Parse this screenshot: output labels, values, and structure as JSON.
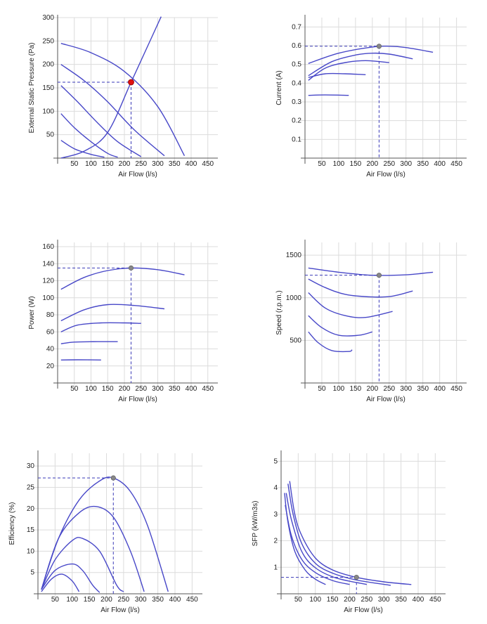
{
  "colors": {
    "curve": "#4848c8",
    "guide": "#3a3ab8",
    "grid": "#dcdcdc",
    "point_red": "#e01010",
    "point_grey": "#888888"
  },
  "chart_data": [
    {
      "type": "line",
      "xlabel": "Air Flow (l/s)",
      "ylabel": "External Static Pressure (Pa)",
      "xlim": [
        0,
        480
      ],
      "ylim": [
        0,
        300
      ],
      "xticks": [
        50,
        100,
        150,
        200,
        250,
        300,
        350,
        400,
        450
      ],
      "yticks": [
        50,
        100,
        150,
        200,
        250,
        300
      ],
      "grid": true,
      "series": [
        {
          "points": [
            [
              10,
              245
            ],
            [
              100,
              225
            ],
            [
              200,
              185
            ],
            [
              300,
              110
            ],
            [
              380,
              5
            ]
          ]
        },
        {
          "points": [
            [
              10,
              200
            ],
            [
              80,
              165
            ],
            [
              150,
              120
            ],
            [
              230,
              60
            ],
            [
              320,
              5
            ]
          ]
        },
        {
          "points": [
            [
              10,
              155
            ],
            [
              60,
              120
            ],
            [
              120,
              75
            ],
            [
              180,
              35
            ],
            [
              250,
              3
            ]
          ]
        },
        {
          "points": [
            [
              10,
              95
            ],
            [
              50,
              65
            ],
            [
              100,
              35
            ],
            [
              150,
              10
            ],
            [
              180,
              2
            ]
          ]
        },
        {
          "points": [
            [
              10,
              38
            ],
            [
              50,
              20
            ],
            [
              100,
              8
            ],
            [
              140,
              2
            ]
          ]
        },
        {
          "points": [
            [
              10,
              0
            ],
            [
              80,
              15
            ],
            [
              150,
              55
            ],
            [
              220,
              162
            ],
            [
              280,
              255
            ],
            [
              310,
              302
            ]
          ]
        }
      ],
      "operating_point": {
        "x": 220,
        "y": 162,
        "color": "red"
      }
    },
    {
      "type": "line",
      "xlabel": "Air Flow (l/s)",
      "ylabel": "Current (A)",
      "xlim": [
        0,
        480
      ],
      "ylim": [
        0,
        0.75
      ],
      "xticks": [
        50,
        100,
        150,
        200,
        250,
        300,
        350,
        400,
        450
      ],
      "yticks": [
        "0.1",
        "0.2",
        "0.3",
        "0.4",
        "0.5",
        "0.6",
        "0.7"
      ],
      "grid": true,
      "series": [
        {
          "points": [
            [
              10,
              0.505
            ],
            [
              100,
              0.56
            ],
            [
              200,
              0.593
            ],
            [
              250,
              0.597
            ],
            [
              300,
              0.59
            ],
            [
              380,
              0.565
            ]
          ]
        },
        {
          "points": [
            [
              10,
              0.44
            ],
            [
              80,
              0.515
            ],
            [
              150,
              0.55
            ],
            [
              200,
              0.56
            ],
            [
              250,
              0.555
            ],
            [
              320,
              0.53
            ]
          ]
        },
        {
          "points": [
            [
              10,
              0.415
            ],
            [
              60,
              0.48
            ],
            [
              120,
              0.51
            ],
            [
              180,
              0.52
            ],
            [
              250,
              0.51
            ]
          ]
        },
        {
          "points": [
            [
              10,
              0.43
            ],
            [
              60,
              0.45
            ],
            [
              120,
              0.45
            ],
            [
              180,
              0.445
            ]
          ]
        },
        {
          "points": [
            [
              10,
              0.335
            ],
            [
              60,
              0.337
            ],
            [
              130,
              0.335
            ]
          ]
        }
      ],
      "operating_point": {
        "x": 220,
        "y": 0.597,
        "color": "grey"
      }
    },
    {
      "type": "line",
      "xlabel": "Air Flow (l/s)",
      "ylabel": "Power (W)",
      "xlim": [
        0,
        480
      ],
      "ylim": [
        0,
        165
      ],
      "xticks": [
        50,
        100,
        150,
        200,
        250,
        300,
        350,
        400,
        450
      ],
      "yticks": [
        20,
        40,
        60,
        80,
        100,
        120,
        140,
        160
      ],
      "grid": true,
      "series": [
        {
          "points": [
            [
              10,
              110
            ],
            [
              80,
              124
            ],
            [
              150,
              132
            ],
            [
              220,
              135
            ],
            [
              300,
              133
            ],
            [
              380,
              127
            ]
          ]
        },
        {
          "points": [
            [
              10,
              73
            ],
            [
              80,
              86
            ],
            [
              150,
              92
            ],
            [
              230,
              91
            ],
            [
              320,
              87
            ]
          ]
        },
        {
          "points": [
            [
              10,
              60
            ],
            [
              60,
              68
            ],
            [
              130,
              70.5
            ],
            [
              200,
              70.5
            ],
            [
              250,
              70
            ]
          ]
        },
        {
          "points": [
            [
              10,
              46
            ],
            [
              50,
              48
            ],
            [
              120,
              48.5
            ],
            [
              180,
              48.5
            ]
          ]
        },
        {
          "points": [
            [
              10,
              27
            ],
            [
              60,
              27.2
            ],
            [
              130,
              27
            ]
          ]
        }
      ],
      "operating_point": {
        "x": 220,
        "y": 135,
        "color": "grey"
      }
    },
    {
      "type": "line",
      "xlabel": "Air Flow (l/s)",
      "ylabel": "Speed (r.p.m.)",
      "xlim": [
        0,
        480
      ],
      "ylim": [
        0,
        1650
      ],
      "xticks": [
        50,
        100,
        150,
        200,
        250,
        300,
        350,
        400,
        450
      ],
      "yticks": [
        500,
        1000,
        1500
      ],
      "grid": true,
      "series": [
        {
          "points": [
            [
              10,
              1350
            ],
            [
              100,
              1300
            ],
            [
              200,
              1265
            ],
            [
              300,
              1270
            ],
            [
              380,
              1300
            ]
          ]
        },
        {
          "points": [
            [
              10,
              1220
            ],
            [
              60,
              1120
            ],
            [
              120,
              1040
            ],
            [
              200,
              1010
            ],
            [
              260,
              1020
            ],
            [
              320,
              1080
            ]
          ]
        },
        {
          "points": [
            [
              10,
              1060
            ],
            [
              60,
              880
            ],
            [
              120,
              790
            ],
            [
              180,
              770
            ],
            [
              260,
              840
            ]
          ]
        },
        {
          "points": [
            [
              10,
              790
            ],
            [
              50,
              650
            ],
            [
              100,
              560
            ],
            [
              160,
              560
            ],
            [
              200,
              600
            ]
          ]
        },
        {
          "points": [
            [
              10,
              600
            ],
            [
              40,
              470
            ],
            [
              80,
              380
            ],
            [
              130,
              370
            ],
            [
              140,
              390
            ]
          ]
        }
      ],
      "operating_point": {
        "x": 220,
        "y": 1265,
        "color": "grey"
      }
    },
    {
      "type": "line",
      "xlabel": "Air Flow (l/s)",
      "ylabel": "Efficiency (%)",
      "xlim": [
        0,
        480
      ],
      "ylim": [
        0,
        33
      ],
      "xticks": [
        50,
        100,
        150,
        200,
        250,
        300,
        350,
        400,
        450
      ],
      "yticks": [
        5,
        10,
        15,
        20,
        25,
        30
      ],
      "grid": true,
      "series": [
        {
          "points": [
            [
              10,
              1
            ],
            [
              60,
              13
            ],
            [
              120,
              22
            ],
            [
              180,
              26.5
            ],
            [
              220,
              27.2
            ],
            [
              270,
              24
            ],
            [
              320,
              16
            ],
            [
              380,
              0.5
            ]
          ]
        },
        {
          "points": [
            [
              10,
              1
            ],
            [
              60,
              13
            ],
            [
              120,
              19
            ],
            [
              170,
              20.5
            ],
            [
              220,
              18
            ],
            [
              270,
              10
            ],
            [
              310,
              0.5
            ]
          ]
        },
        {
          "points": [
            [
              10,
              1
            ],
            [
              50,
              8
            ],
            [
              100,
              12.5
            ],
            [
              130,
              13
            ],
            [
              180,
              10
            ],
            [
              230,
              2
            ],
            [
              250,
              0.5
            ]
          ]
        },
        {
          "points": [
            [
              10,
              1
            ],
            [
              50,
              5.5
            ],
            [
              100,
              7
            ],
            [
              130,
              5.5
            ],
            [
              160,
              2
            ],
            [
              180,
              0.3
            ]
          ]
        },
        {
          "points": [
            [
              10,
              0.5
            ],
            [
              40,
              3.5
            ],
            [
              70,
              4.6
            ],
            [
              100,
              3
            ],
            [
              120,
              0.5
            ]
          ]
        }
      ],
      "operating_point": {
        "x": 220,
        "y": 27.2,
        "color": "grey"
      }
    },
    {
      "type": "line",
      "xlabel": "Air Flow (l/s)",
      "ylabel": "SFP (kW/m3s)",
      "xlim": [
        0,
        480
      ],
      "ylim": [
        0,
        5.3
      ],
      "xticks": [
        50,
        100,
        150,
        200,
        250,
        300,
        350,
        400,
        450
      ],
      "yticks": [
        1,
        2,
        3,
        4,
        5
      ],
      "grid": true,
      "series": [
        {
          "points": [
            [
              25,
              4.25
            ],
            [
              40,
              3.0
            ],
            [
              60,
              2.2
            ],
            [
              100,
              1.35
            ],
            [
              150,
              0.9
            ],
            [
              220,
              0.62
            ],
            [
              300,
              0.45
            ],
            [
              380,
              0.35
            ]
          ]
        },
        {
          "points": [
            [
              20,
              4.15
            ],
            [
              35,
              3.0
            ],
            [
              60,
              1.9
            ],
            [
              100,
              1.15
            ],
            [
              150,
              0.78
            ],
            [
              220,
              0.52
            ],
            [
              320,
              0.32
            ]
          ]
        },
        {
          "points": [
            [
              15,
              3.8
            ],
            [
              30,
              2.8
            ],
            [
              60,
              1.6
            ],
            [
              100,
              0.98
            ],
            [
              160,
              0.6
            ],
            [
              250,
              0.35
            ]
          ]
        },
        {
          "points": [
            [
              12,
              3.35
            ],
            [
              30,
              2.2
            ],
            [
              60,
              1.3
            ],
            [
              100,
              0.8
            ],
            [
              150,
              0.5
            ],
            [
              200,
              0.35
            ]
          ]
        },
        {
          "points": [
            [
              10,
              3.8
            ],
            [
              20,
              2.7
            ],
            [
              40,
              1.6
            ],
            [
              70,
              0.9
            ],
            [
              100,
              0.55
            ],
            [
              130,
              0.35
            ]
          ]
        }
      ],
      "operating_point": {
        "x": 220,
        "y": 0.62,
        "color": "grey"
      }
    }
  ]
}
